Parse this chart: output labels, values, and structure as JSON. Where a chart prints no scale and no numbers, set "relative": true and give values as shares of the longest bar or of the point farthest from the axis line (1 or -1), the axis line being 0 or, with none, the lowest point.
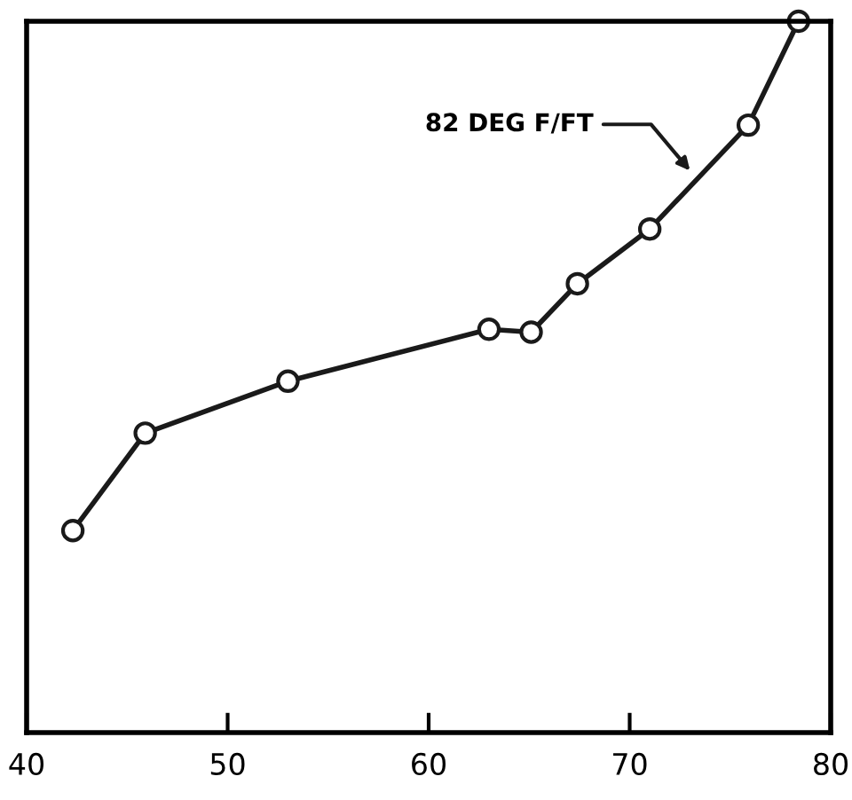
{
  "chart_data": {
    "type": "line",
    "relative": true,
    "marker": "circle",
    "line_style": "solid",
    "x": [
      42.3,
      45.9,
      53.0,
      63.0,
      65.1,
      67.4,
      71.0,
      75.9,
      78.4
    ],
    "series": [
      {
        "color": "#1a1a1a",
        "values": [
          0.284,
          0.421,
          0.494,
          0.567,
          0.563,
          0.631,
          0.708,
          0.854,
          1
        ]
      }
    ],
    "xlim": [
      40,
      80
    ],
    "xticks": [
      40,
      50,
      60,
      70,
      80
    ],
    "grid": false,
    "legend": false,
    "annotations": [
      "82 DEG F/FT"
    ]
  }
}
